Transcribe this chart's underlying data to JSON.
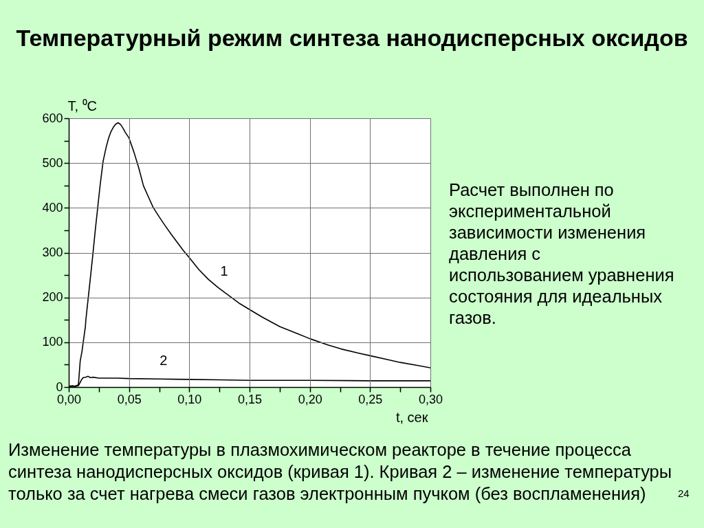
{
  "chart_data": {
    "type": "line",
    "title": "Температурный режим синтеза нанодисперсных оксидов",
    "xlabel": "t, сек",
    "ylabel": "T, ⁰C",
    "xlim": [
      0,
      0.3
    ],
    "xticks": [
      {
        "value": 0,
        "label": "0,00"
      },
      {
        "value": 0.025,
        "label": null
      },
      {
        "value": 0.05,
        "label": "0,05"
      },
      {
        "value": 0.075,
        "label": null
      },
      {
        "value": 0.1,
        "label": "0,10"
      },
      {
        "value": 0.125,
        "label": null
      },
      {
        "value": 0.15,
        "label": "0,15"
      },
      {
        "value": 0.175,
        "label": null
      },
      {
        "value": 0.2,
        "label": "0,20"
      },
      {
        "value": 0.225,
        "label": null
      },
      {
        "value": 0.25,
        "label": "0,25"
      },
      {
        "value": 0.275,
        "label": null
      },
      {
        "value": 0.3,
        "label": "0,30"
      }
    ],
    "ylim": [
      0,
      600
    ],
    "yticks": [
      0,
      {
        "value": 50,
        "label": null
      },
      100,
      {
        "value": 150,
        "label": null
      },
      200,
      {
        "value": 250,
        "label": null
      },
      300,
      {
        "value": 350,
        "label": null
      },
      400,
      {
        "value": 450,
        "label": null
      },
      500,
      {
        "value": 550,
        "label": null
      },
      600
    ],
    "grid": true,
    "line_style": "solid",
    "series": [
      {
        "name": "1",
        "color": "#000000",
        "x": [
          0,
          0.003,
          0.005,
          0.008,
          0.009,
          0.0095,
          0.011,
          0.0125,
          0.0138,
          0.0142,
          0.016,
          0.018,
          0.02,
          0.022,
          0.024,
          0.026,
          0.0285,
          0.031,
          0.033,
          0.035,
          0.037,
          0.039,
          0.041,
          0.043,
          0.045,
          0.047,
          0.05,
          0.054,
          0.058,
          0.062,
          0.066,
          0.07,
          0.075,
          0.08,
          0.085,
          0.09,
          0.095,
          0.1,
          0.108,
          0.116,
          0.124,
          0.133,
          0.142,
          0.15,
          0.16,
          0.175,
          0.19,
          0.2,
          0.215,
          0.226,
          0.24,
          0.25,
          0.265,
          0.275,
          0.29,
          0.3
        ],
        "values": [
          2,
          3,
          2,
          5,
          40,
          58,
          80,
          110,
          135,
          150,
          195,
          245,
          296,
          350,
          400,
          450,
          504,
          535,
          555,
          570,
          580,
          587,
          590,
          586,
          578,
          568,
          556,
          525,
          490,
          449,
          425,
          401,
          380,
          360,
          341,
          323,
          305,
          289,
          262,
          240,
          222,
          204,
          186,
          173,
          157,
          135,
          119,
          108,
          94,
          85,
          76,
          70,
          61,
          55,
          48,
          43
        ]
      },
      {
        "name": "2",
        "color": "#000000",
        "x": [
          0,
          0.003,
          0.005,
          0.008,
          0.009,
          0.0105,
          0.012,
          0.014,
          0.016,
          0.018,
          0.02,
          0.025,
          0.03,
          0.04,
          0.05,
          0.075,
          0.1,
          0.125,
          0.15,
          0.2,
          0.25,
          0.3
        ],
        "values": [
          1,
          2,
          1,
          3,
          8,
          16,
          21,
          22,
          24,
          21,
          22,
          20,
          20,
          20,
          19,
          18,
          17,
          16,
          15,
          15,
          14,
          14
        ]
      }
    ],
    "annotations": [
      "Расчет выполнен по экспериментальной зависимости изменения давления с использованием уравнения состояния для идеальных газов.",
      "Изменение температуры в плазмохимическом реакторе в течение процесса синтеза нанодисперсных оксидов (кривая 1). Кривая 2 – изменение температуры только за счет нагрева смеси газов электронным пучком (без воспламенения)",
      "24"
    ]
  }
}
